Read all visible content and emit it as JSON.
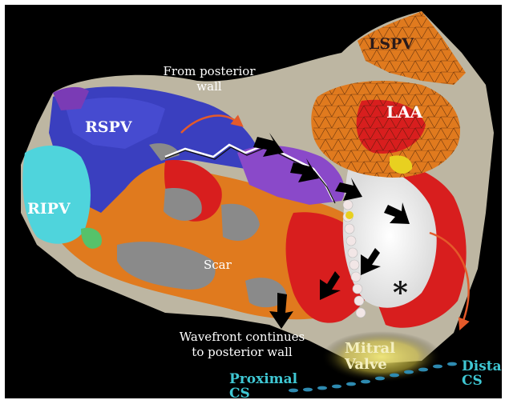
{
  "figure": {
    "labels": {
      "lspv": "LSPV",
      "laa": "LAA",
      "rspv": "RSPV",
      "ripv": "RIPV",
      "scar": "Scar",
      "mitral_line1": "Mitral",
      "mitral_line2": "Valve",
      "proximal_line1": "Proximal",
      "proximal_line2": "CS",
      "distal_line1": "Distal",
      "distal_line2": "CS",
      "asterisk": "*"
    },
    "annotations": {
      "posterior_in_line1": "From posterior",
      "posterior_in_line2": "wall",
      "wavefront_line1": "Wavefront continues",
      "wavefront_line2": "to posterior wall"
    },
    "colors": {
      "background": "#000000",
      "frame_border": "#ffffff",
      "map_orange": "#e07a1e",
      "map_red": "#d81e1e",
      "map_blue": "#3a3fbf",
      "map_purple": "#8a49c9",
      "map_cyan": "#4fd4dc",
      "map_white": "#f4f4f4",
      "map_grey": "#8a8a8a",
      "tissue_beige": "#bdb6a2",
      "label_cyan": "#3fc7d3",
      "label_dark": "#2a1a1a",
      "mitral_glow": "#e6dd6a"
    }
  }
}
